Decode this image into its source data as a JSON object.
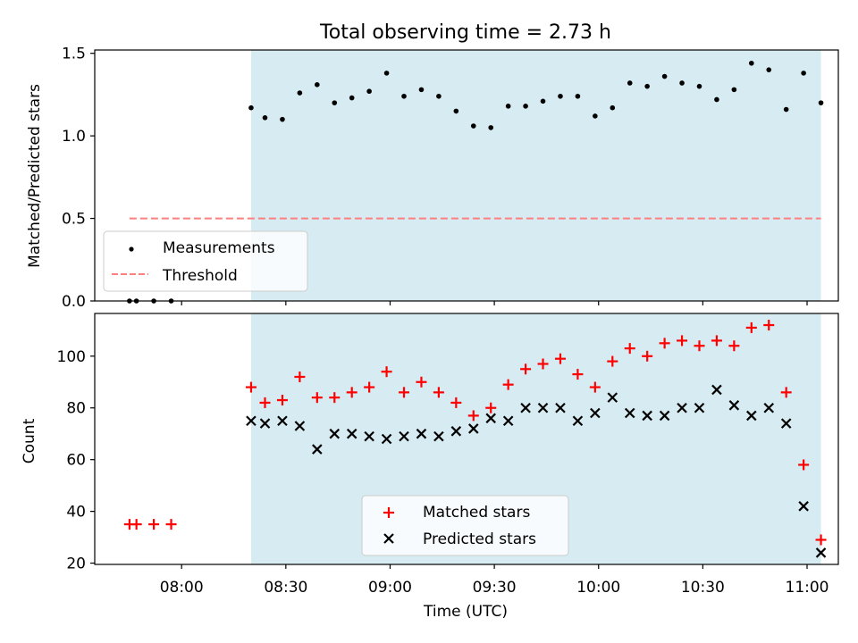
{
  "title": "Total observing time = 2.73 h",
  "colors": {
    "shade": "#add8e6",
    "matched": "#ff0000",
    "predicted": "#000000",
    "threshold": "#ff7f7f",
    "measurement": "#000000"
  },
  "chart_data": [
    {
      "type": "scatter",
      "ylabel": "Matched/Predicted stars",
      "ylim": [
        0,
        1.52
      ],
      "yticks": [
        0.0,
        0.5,
        1.0,
        1.5
      ],
      "ytick_labels": [
        "0.0",
        "0.5",
        "1.0",
        "1.5"
      ],
      "xlim": [
        "07:35",
        "11:09"
      ],
      "shaded_span": [
        "08:20",
        "11:04"
      ],
      "threshold": {
        "y": 0.5,
        "x": [
          "07:45",
          "11:04"
        ],
        "style": "dashed"
      },
      "legend": {
        "placement": "lower-left",
        "entries": [
          "Measurements",
          "Threshold"
        ]
      },
      "series": [
        {
          "name": "Measurements",
          "points": [
            [
              "07:45",
              0.0
            ],
            [
              "07:47",
              0.0
            ],
            [
              "07:52",
              0.0
            ],
            [
              "07:57",
              0.0
            ],
            [
              "08:20",
              1.17
            ],
            [
              "08:24",
              1.11
            ],
            [
              "08:29",
              1.1
            ],
            [
              "08:34",
              1.26
            ],
            [
              "08:39",
              1.31
            ],
            [
              "08:44",
              1.2
            ],
            [
              "08:49",
              1.23
            ],
            [
              "08:54",
              1.27
            ],
            [
              "08:59",
              1.38
            ],
            [
              "09:04",
              1.24
            ],
            [
              "09:09",
              1.28
            ],
            [
              "09:14",
              1.24
            ],
            [
              "09:19",
              1.15
            ],
            [
              "09:24",
              1.06
            ],
            [
              "09:29",
              1.05
            ],
            [
              "09:34",
              1.18
            ],
            [
              "09:39",
              1.18
            ],
            [
              "09:44",
              1.21
            ],
            [
              "09:49",
              1.24
            ],
            [
              "09:54",
              1.24
            ],
            [
              "09:59",
              1.12
            ],
            [
              "10:04",
              1.17
            ],
            [
              "10:09",
              1.32
            ],
            [
              "10:14",
              1.3
            ],
            [
              "10:19",
              1.36
            ],
            [
              "10:24",
              1.32
            ],
            [
              "10:29",
              1.3
            ],
            [
              "10:34",
              1.22
            ],
            [
              "10:39",
              1.28
            ],
            [
              "10:44",
              1.44
            ],
            [
              "10:49",
              1.4
            ],
            [
              "10:54",
              1.16
            ],
            [
              "10:59",
              1.38
            ],
            [
              "11:04",
              1.2
            ]
          ]
        }
      ]
    },
    {
      "type": "scatter",
      "xlabel": "Time (UTC)",
      "ylabel": "Count",
      "ylim": [
        19.5,
        116.5
      ],
      "yticks": [
        20,
        40,
        60,
        80,
        100
      ],
      "ytick_labels": [
        "20",
        "40",
        "60",
        "80",
        "100"
      ],
      "xlim": [
        "07:35",
        "11:09"
      ],
      "xticks": [
        "08:00",
        "08:30",
        "09:00",
        "09:30",
        "10:00",
        "10:30",
        "11:00"
      ],
      "xtick_labels": [
        "08:00",
        "08:30",
        "09:00",
        "09:30",
        "10:00",
        "10:30",
        "11:00"
      ],
      "shaded_span": [
        "08:20",
        "11:04"
      ],
      "legend": {
        "placement": "lower-center",
        "entries": [
          "Matched stars",
          "Predicted stars"
        ]
      },
      "series": [
        {
          "name": "Matched stars",
          "marker": "+",
          "points": [
            [
              "07:45",
              35
            ],
            [
              "07:47",
              35
            ],
            [
              "07:52",
              35
            ],
            [
              "07:57",
              35
            ],
            [
              "08:20",
              88
            ],
            [
              "08:24",
              82
            ],
            [
              "08:29",
              83
            ],
            [
              "08:34",
              92
            ],
            [
              "08:39",
              84
            ],
            [
              "08:44",
              84
            ],
            [
              "08:49",
              86
            ],
            [
              "08:54",
              88
            ],
            [
              "08:59",
              94
            ],
            [
              "09:04",
              86
            ],
            [
              "09:09",
              90
            ],
            [
              "09:14",
              86
            ],
            [
              "09:19",
              82
            ],
            [
              "09:24",
              77
            ],
            [
              "09:29",
              80
            ],
            [
              "09:34",
              89
            ],
            [
              "09:39",
              95
            ],
            [
              "09:44",
              97
            ],
            [
              "09:49",
              99
            ],
            [
              "09:54",
              93
            ],
            [
              "09:59",
              88
            ],
            [
              "10:04",
              98
            ],
            [
              "10:09",
              103
            ],
            [
              "10:14",
              100
            ],
            [
              "10:19",
              105
            ],
            [
              "10:24",
              106
            ],
            [
              "10:29",
              104
            ],
            [
              "10:34",
              106
            ],
            [
              "10:39",
              104
            ],
            [
              "10:44",
              111
            ],
            [
              "10:49",
              112
            ],
            [
              "10:54",
              86
            ],
            [
              "10:59",
              58
            ],
            [
              "11:04",
              29
            ]
          ]
        },
        {
          "name": "Predicted stars",
          "marker": "x",
          "points": [
            [
              "08:20",
              75
            ],
            [
              "08:24",
              74
            ],
            [
              "08:29",
              75
            ],
            [
              "08:34",
              73
            ],
            [
              "08:39",
              64
            ],
            [
              "08:44",
              70
            ],
            [
              "08:49",
              70
            ],
            [
              "08:54",
              69
            ],
            [
              "08:59",
              68
            ],
            [
              "09:04",
              69
            ],
            [
              "09:09",
              70
            ],
            [
              "09:14",
              69
            ],
            [
              "09:19",
              71
            ],
            [
              "09:24",
              72
            ],
            [
              "09:29",
              76
            ],
            [
              "09:34",
              75
            ],
            [
              "09:39",
              80
            ],
            [
              "09:44",
              80
            ],
            [
              "09:49",
              80
            ],
            [
              "09:54",
              75
            ],
            [
              "09:59",
              78
            ],
            [
              "10:04",
              84
            ],
            [
              "10:09",
              78
            ],
            [
              "10:14",
              77
            ],
            [
              "10:19",
              77
            ],
            [
              "10:24",
              80
            ],
            [
              "10:29",
              80
            ],
            [
              "10:34",
              87
            ],
            [
              "10:39",
              81
            ],
            [
              "10:44",
              77
            ],
            [
              "10:49",
              80
            ],
            [
              "10:54",
              74
            ],
            [
              "10:59",
              42
            ],
            [
              "11:04",
              24
            ]
          ]
        }
      ]
    }
  ]
}
